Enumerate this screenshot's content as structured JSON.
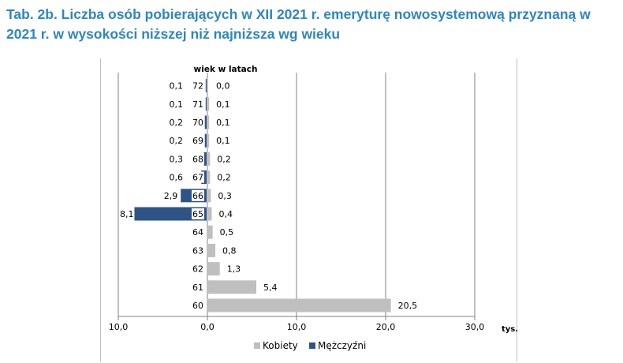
{
  "title_line1": "Tab. 2b. Liczba osób pobierających w XII 2021 r. emeryturę nowosystemową przyznaną w",
  "title_line2": "2021 r. w wysokości niższej niż najniższa wg wieku",
  "chart_data": {
    "type": "bar",
    "orientation": "horizontal-diverging",
    "ylabel": "wiek w latach",
    "xlabel": "tys.",
    "categories": [
      "72",
      "71",
      "70",
      "69",
      "68",
      "67",
      "66",
      "65",
      "64",
      "63",
      "62",
      "61",
      "60"
    ],
    "series": [
      {
        "name": "Mężczyźni",
        "color": "#2e5387",
        "side": "left",
        "values": [
          0.1,
          0.1,
          0.2,
          0.2,
          0.3,
          0.6,
          2.9,
          8.1,
          null,
          null,
          null,
          null,
          null
        ]
      },
      {
        "name": "Kobiety",
        "color": "#bfbfbf",
        "side": "right",
        "values": [
          0.0,
          0.1,
          0.1,
          0.1,
          0.2,
          0.2,
          0.3,
          0.4,
          0.5,
          0.8,
          1.3,
          5.4,
          20.5
        ]
      }
    ],
    "xticks": [
      "10,0",
      "0,0",
      "10,0",
      "20,0",
      "30,0"
    ],
    "xtick_values": [
      -10,
      0,
      10,
      20,
      30
    ],
    "xlim": [
      -10,
      30
    ],
    "legend": [
      "Kobiety",
      "Mężczyźni"
    ],
    "legend_position": "bottom",
    "grid": "vertical"
  }
}
